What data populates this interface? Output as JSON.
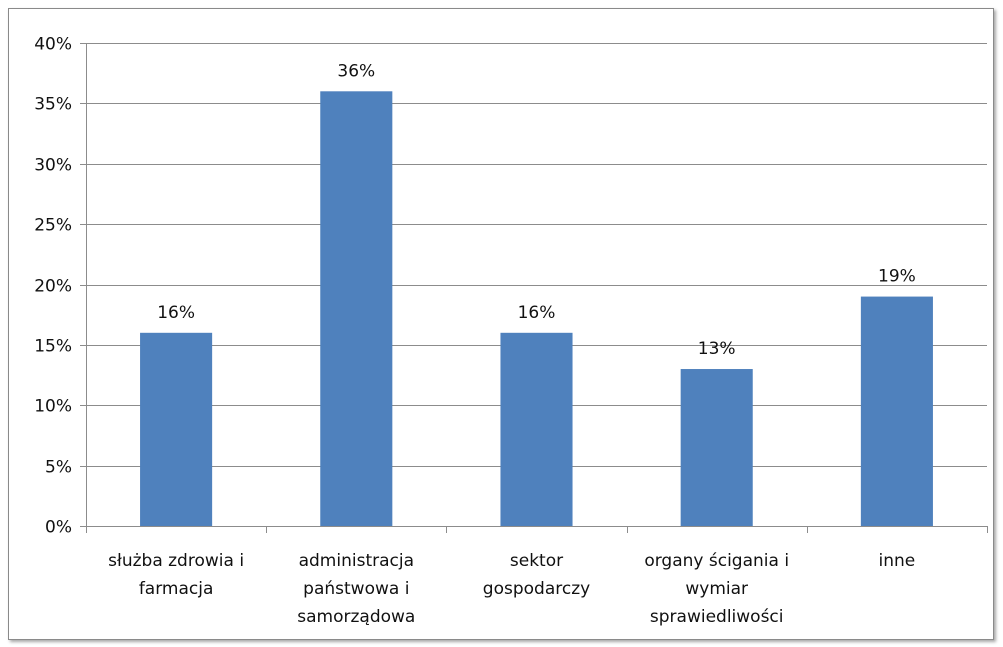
{
  "chart_data": {
    "type": "bar",
    "categories": [
      [
        "służba zdrowia i",
        "farmacja"
      ],
      [
        "administracja",
        "państwowa i",
        "samorządowa"
      ],
      [
        "sektor",
        "gospodarczy"
      ],
      [
        "organy ścigania i",
        "wymiar",
        "sprawiedliwości"
      ],
      [
        "inne"
      ]
    ],
    "values": [
      16,
      36,
      16,
      13,
      19
    ],
    "data_labels": [
      "16%",
      "36%",
      "16%",
      "13%",
      "19%"
    ],
    "yticks": [
      "0%",
      "5%",
      "10%",
      "15%",
      "20%",
      "25%",
      "30%",
      "35%",
      "40%"
    ],
    "ylim": [
      0,
      40
    ],
    "ystep": 5,
    "grid": true,
    "legend": "none",
    "bar_color": "#4f81bd",
    "grid_color": "#8c8c8c"
  }
}
